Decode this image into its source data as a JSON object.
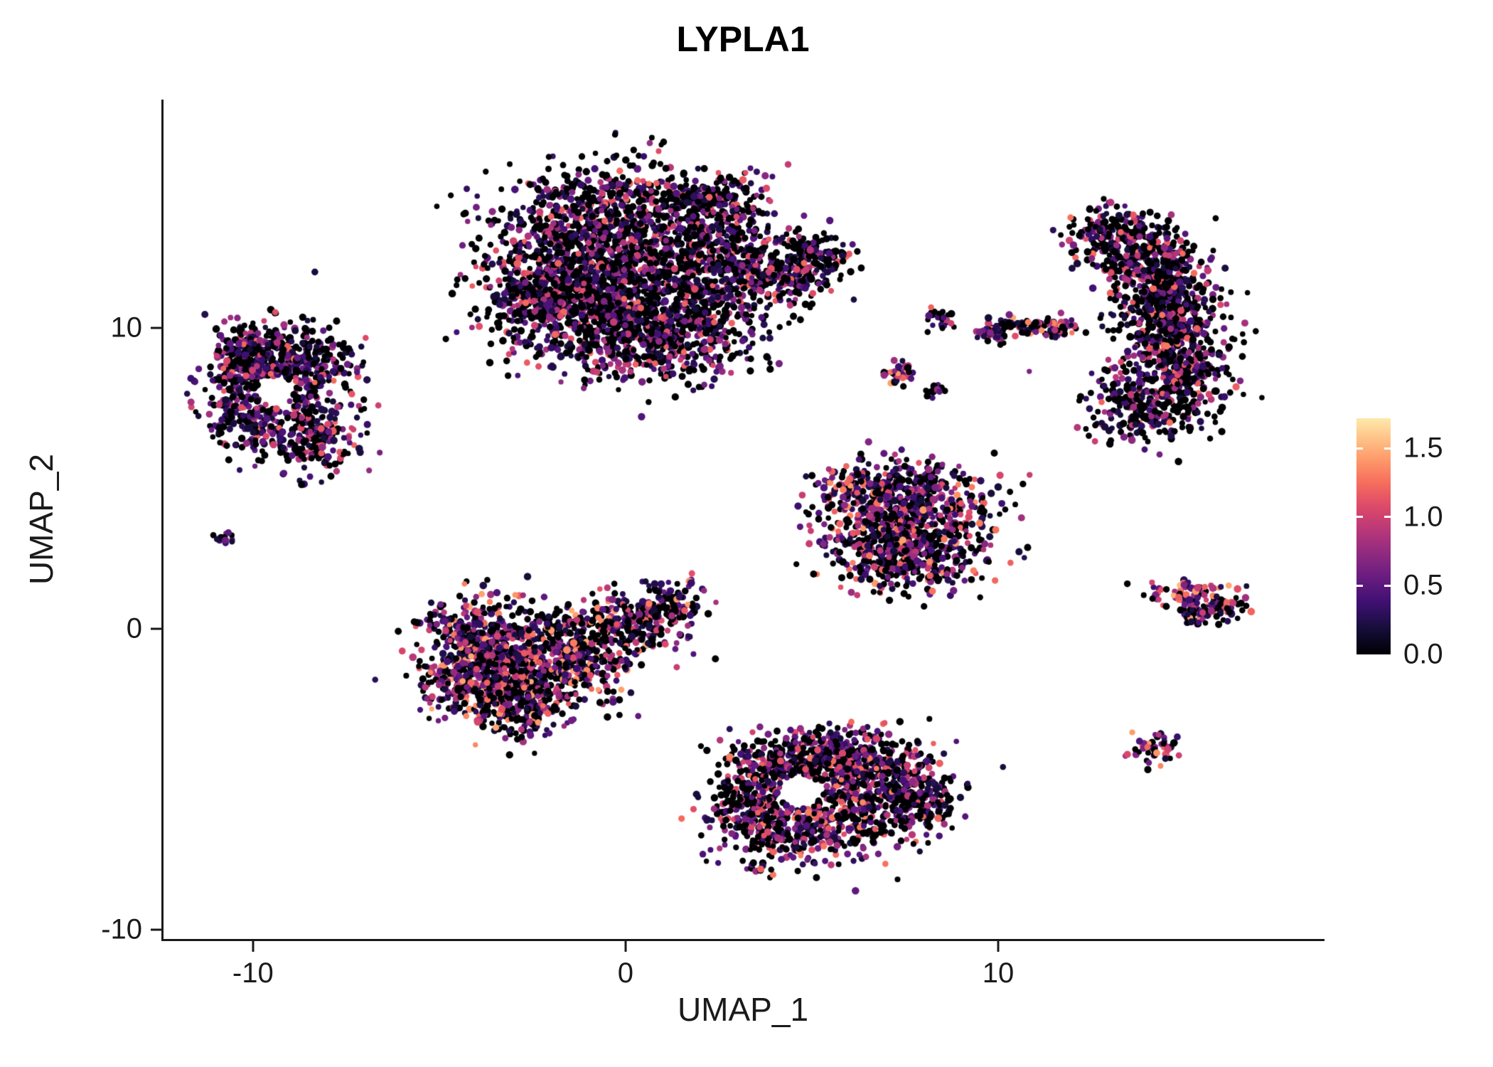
{
  "chart_data": {
    "type": "scatter",
    "title": "LYPLA1",
    "xlabel": "UMAP_1",
    "ylabel": "UMAP_2",
    "xlim": [
      -12.4,
      18.7
    ],
    "ylim": [
      -10.3,
      17.6
    ],
    "x_ticks": [
      {
        "value": -10,
        "label": "-10"
      },
      {
        "value": 0,
        "label": "0"
      },
      {
        "value": 10,
        "label": "10"
      }
    ],
    "y_ticks": [
      {
        "value": -10,
        "label": "-10"
      },
      {
        "value": 0,
        "label": "0"
      },
      {
        "value": 10,
        "label": "10"
      }
    ],
    "colormap": "magma",
    "colormap_stops": [
      [
        0.0,
        "#000004"
      ],
      [
        0.1,
        "#140e36"
      ],
      [
        0.2,
        "#3b0f70"
      ],
      [
        0.3,
        "#641a80"
      ],
      [
        0.4,
        "#8c2981"
      ],
      [
        0.5,
        "#b73779"
      ],
      [
        0.6,
        "#de4968"
      ],
      [
        0.7,
        "#f7705c"
      ],
      [
        0.8,
        "#fe9f6d"
      ],
      [
        0.9,
        "#fecf92"
      ],
      [
        1.0,
        "#fcfdbf"
      ]
    ],
    "color_value_range": [
      0,
      1.8
    ],
    "colorbar": {
      "max": 1.72,
      "ticks": [
        {
          "value": 0.0,
          "label": "0.0"
        },
        {
          "value": 0.5,
          "label": "0.5"
        },
        {
          "value": 1.0,
          "label": "1.0"
        },
        {
          "value": 1.5,
          "label": "1.5"
        }
      ]
    },
    "seed": 42,
    "point_radius": 4.3,
    "clusters": [
      {
        "name": "top-left-blob",
        "p0": 0.45,
        "scale": 1.25,
        "blobs": [
          [
            -9.8,
            9.3,
            0.8,
            0.6,
            200
          ],
          [
            -8.7,
            8.7,
            0.8,
            0.7,
            220
          ],
          [
            -10.3,
            7.8,
            0.6,
            0.8,
            180
          ],
          [
            -9.0,
            6.9,
            0.9,
            0.7,
            220
          ],
          [
            -8.2,
            6.1,
            0.6,
            0.5,
            110
          ],
          [
            -9.9,
            8.6,
            0.5,
            0.5,
            100
          ]
        ],
        "holes": [
          [
            -9.4,
            7.9,
            0.5
          ]
        ]
      },
      {
        "name": "tiny-left-dot",
        "p0": 0.3,
        "scale": 1.0,
        "blobs": [
          [
            -10.8,
            3.0,
            0.12,
            0.12,
            14
          ]
        ],
        "holes": []
      },
      {
        "name": "big-top-middle",
        "p0": 0.5,
        "scale": 1.25,
        "blobs": [
          [
            -0.2,
            13.6,
            1.6,
            0.9,
            650
          ],
          [
            -0.9,
            11.6,
            1.4,
            1.2,
            800
          ],
          [
            1.2,
            10.6,
            1.4,
            1.0,
            600
          ],
          [
            2.6,
            12.4,
            1.1,
            1.0,
            400
          ],
          [
            -2.4,
            10.9,
            0.8,
            0.8,
            250
          ],
          [
            0.8,
            9.4,
            1.3,
            0.6,
            280
          ],
          [
            2.2,
            14.2,
            0.8,
            0.5,
            150
          ],
          [
            4.2,
            11.7,
            0.7,
            0.45,
            150
          ],
          [
            5.2,
            12.4,
            0.45,
            0.4,
            90
          ]
        ],
        "holes": []
      },
      {
        "name": "small-dot-upper",
        "p0": 0.45,
        "scale": 1.2,
        "blobs": [
          [
            8.4,
            10.4,
            0.22,
            0.2,
            25
          ]
        ],
        "holes": []
      },
      {
        "name": "thin-arc",
        "p0": 0.3,
        "scale": 1.5,
        "blobs": [
          [
            9.9,
            9.85,
            0.28,
            0.16,
            45
          ],
          [
            10.7,
            10.1,
            0.4,
            0.15,
            55
          ],
          [
            11.5,
            10.0,
            0.3,
            0.14,
            40
          ]
        ],
        "holes": []
      },
      {
        "name": "orange-dot",
        "p0": 0.2,
        "scale": 1.7,
        "blobs": [
          [
            7.4,
            8.5,
            0.25,
            0.18,
            30
          ]
        ],
        "holes": []
      },
      {
        "name": "tiny-dot-mid",
        "p0": 0.4,
        "scale": 1.2,
        "blobs": [
          [
            8.3,
            7.9,
            0.15,
            0.12,
            15
          ]
        ],
        "holes": []
      },
      {
        "name": "right-crescent",
        "p0": 0.5,
        "scale": 1.3,
        "blobs": [
          [
            12.9,
            13.2,
            0.6,
            0.45,
            120
          ],
          [
            13.7,
            12.5,
            0.7,
            0.6,
            200
          ],
          [
            14.3,
            11.4,
            0.75,
            0.8,
            280
          ],
          [
            14.8,
            10.0,
            0.7,
            0.9,
            300
          ],
          [
            14.6,
            8.6,
            0.8,
            0.8,
            280
          ],
          [
            13.9,
            7.3,
            0.8,
            0.6,
            200
          ]
        ],
        "holes": []
      },
      {
        "name": "mid-right-triangle",
        "p0": 0.38,
        "scale": 1.45,
        "blobs": [
          [
            7.3,
            4.7,
            1.1,
            0.5,
            240
          ],
          [
            6.7,
            3.6,
            0.9,
            0.8,
            300
          ],
          [
            8.3,
            3.4,
            0.9,
            0.8,
            300
          ],
          [
            7.5,
            2.2,
            0.9,
            0.5,
            220
          ]
        ],
        "holes": []
      },
      {
        "name": "small-right-elongated",
        "p0": 0.3,
        "scale": 1.55,
        "blobs": [
          [
            15.0,
            1.2,
            0.5,
            0.25,
            60
          ],
          [
            15.8,
            0.8,
            0.45,
            0.3,
            70
          ],
          [
            15.3,
            0.45,
            0.3,
            0.18,
            40
          ]
        ],
        "holes": []
      },
      {
        "name": "left-middle-blob",
        "p0": 0.38,
        "scale": 1.5,
        "blobs": [
          [
            -3.9,
            -0.4,
            0.8,
            0.8,
            330
          ],
          [
            -2.6,
            -1.2,
            1.0,
            0.9,
            430
          ],
          [
            -1.3,
            -0.6,
            0.9,
            0.7,
            300
          ],
          [
            -2.9,
            -2.4,
            0.9,
            0.6,
            250
          ],
          [
            0.2,
            0.3,
            0.8,
            0.5,
            180
          ],
          [
            1.2,
            0.9,
            0.45,
            0.4,
            90
          ],
          [
            -4.4,
            -1.6,
            0.5,
            0.6,
            120
          ]
        ],
        "holes": []
      },
      {
        "name": "bottom-middle-blob",
        "p0": 0.45,
        "scale": 1.35,
        "blobs": [
          [
            4.2,
            -4.4,
            0.9,
            0.55,
            240
          ],
          [
            5.8,
            -4.2,
            0.9,
            0.5,
            240
          ],
          [
            6.9,
            -5.0,
            0.9,
            0.7,
            290
          ],
          [
            5.6,
            -6.3,
            1.0,
            0.7,
            290
          ],
          [
            4.0,
            -6.7,
            0.8,
            0.65,
            240
          ],
          [
            3.3,
            -5.5,
            0.5,
            0.5,
            120
          ],
          [
            7.9,
            -5.9,
            0.6,
            0.5,
            130
          ]
        ],
        "holes": [
          [
            4.7,
            -5.4,
            0.55
          ]
        ]
      },
      {
        "name": "small-bottom-right-dot",
        "p0": 0.3,
        "scale": 1.5,
        "blobs": [
          [
            14.2,
            -4.0,
            0.3,
            0.26,
            45
          ]
        ],
        "holes": []
      }
    ]
  }
}
